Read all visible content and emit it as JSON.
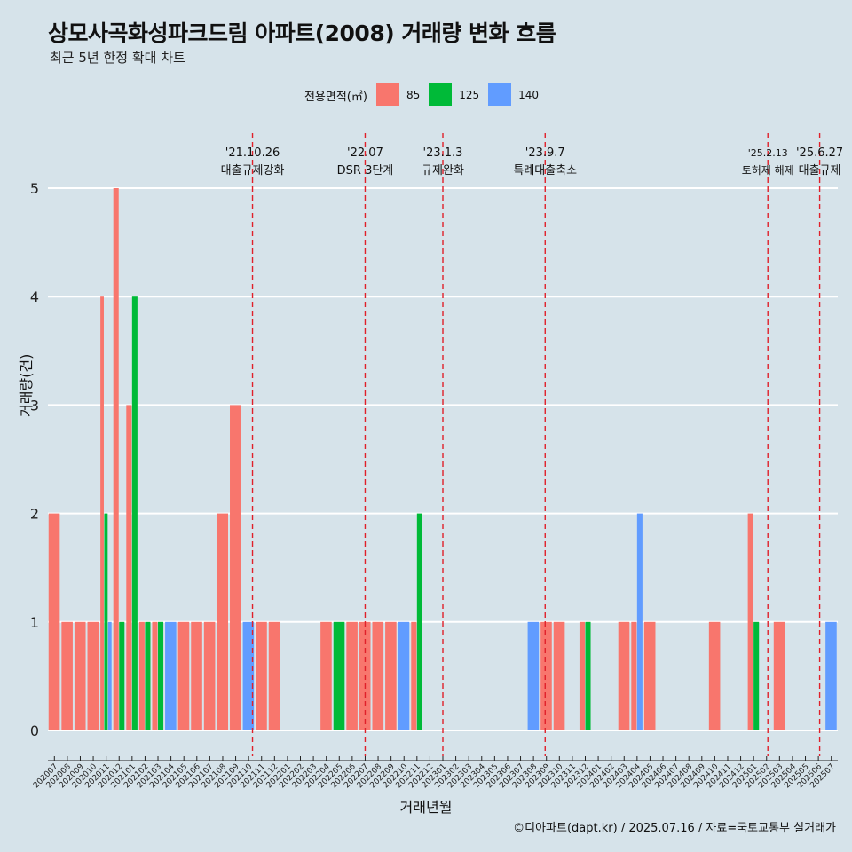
{
  "chart_data": {
    "type": "bar",
    "title": "상모사곡화성파크드림 아파트(2008) 거래량 변화 흐름",
    "subtitle": "최근 5년 한정 확대 차트",
    "xlabel": "거래년월",
    "ylabel": "거래량(건)",
    "ylim": [
      0,
      5
    ],
    "yticks": [
      0,
      1,
      2,
      3,
      4,
      5
    ],
    "grid": "horizontal",
    "legend_position": "top",
    "legend_title": "전용면적(㎡)",
    "categories": [
      "202007",
      "202008",
      "202009",
      "202010",
      "202011",
      "202012",
      "202101",
      "202102",
      "202103",
      "202104",
      "202105",
      "202106",
      "202107",
      "202108",
      "202109",
      "202110",
      "202111",
      "202112",
      "202201",
      "202202",
      "202203",
      "202204",
      "202205",
      "202206",
      "202207",
      "202208",
      "202209",
      "202210",
      "202211",
      "202212",
      "202301",
      "202302",
      "202303",
      "202304",
      "202305",
      "202306",
      "202307",
      "202308",
      "202309",
      "202310",
      "202311",
      "202312",
      "202401",
      "202402",
      "202403",
      "202404",
      "202405",
      "202406",
      "202407",
      "202408",
      "202409",
      "202410",
      "202411",
      "202412",
      "202501",
      "202502",
      "202503",
      "202504",
      "202505",
      "202506",
      "202507"
    ],
    "series": [
      {
        "name": "85",
        "color": "#f8766d",
        "values": [
          2,
          1,
          1,
          1,
          4,
          5,
          3,
          1,
          1,
          0,
          1,
          1,
          1,
          2,
          3,
          0,
          1,
          1,
          0,
          0,
          0,
          1,
          0,
          1,
          1,
          1,
          1,
          0,
          1,
          0,
          0,
          0,
          0,
          0,
          0,
          0,
          0,
          0,
          1,
          1,
          0,
          1,
          0,
          0,
          1,
          1,
          1,
          0,
          0,
          0,
          0,
          1,
          0,
          0,
          2,
          0,
          1,
          0,
          0,
          0,
          0
        ]
      },
      {
        "name": "125",
        "color": "#00ba38",
        "values": [
          0,
          0,
          0,
          0,
          2,
          1,
          4,
          1,
          1,
          0,
          0,
          0,
          0,
          0,
          0,
          0,
          0,
          0,
          0,
          0,
          0,
          0,
          1,
          0,
          0,
          0,
          0,
          0,
          2,
          0,
          0,
          0,
          0,
          0,
          0,
          0,
          0,
          0,
          0,
          0,
          0,
          1,
          0,
          0,
          0,
          0,
          0,
          0,
          0,
          0,
          0,
          0,
          0,
          0,
          1,
          0,
          0,
          0,
          0,
          0,
          0
        ]
      },
      {
        "name": "140",
        "color": "#619cff",
        "values": [
          0,
          0,
          0,
          0,
          1,
          0,
          0,
          0,
          0,
          1,
          0,
          0,
          0,
          0,
          0,
          1,
          0,
          0,
          0,
          0,
          0,
          0,
          0,
          0,
          0,
          0,
          0,
          1,
          0,
          0,
          0,
          0,
          0,
          0,
          0,
          0,
          0,
          1,
          0,
          0,
          0,
          0,
          0,
          0,
          0,
          2,
          0,
          0,
          0,
          0,
          0,
          0,
          0,
          0,
          0,
          0,
          0,
          0,
          0,
          0,
          1
        ]
      }
    ],
    "events": [
      {
        "date": "'21.10.26",
        "label": "대출규제강화",
        "month_index": 15.8
      },
      {
        "date": "'22.07",
        "label": "DSR 3단계",
        "month_index": 24.5
      },
      {
        "date": "'23.1.3",
        "label": "규제완화",
        "month_index": 30.5
      },
      {
        "date": "'23.9.7",
        "label": "특례대출축소",
        "month_index": 38.4
      },
      {
        "date": "'25.2.13",
        "label": "토허제 해제",
        "month_index": 55.6
      },
      {
        "date": "'25.6.27",
        "label": "대출규제",
        "month_index": 59.6
      }
    ],
    "caption": "©디아파트(dapt.kr) / 2025.07.16 / 자료=국토교통부 실거래가"
  }
}
